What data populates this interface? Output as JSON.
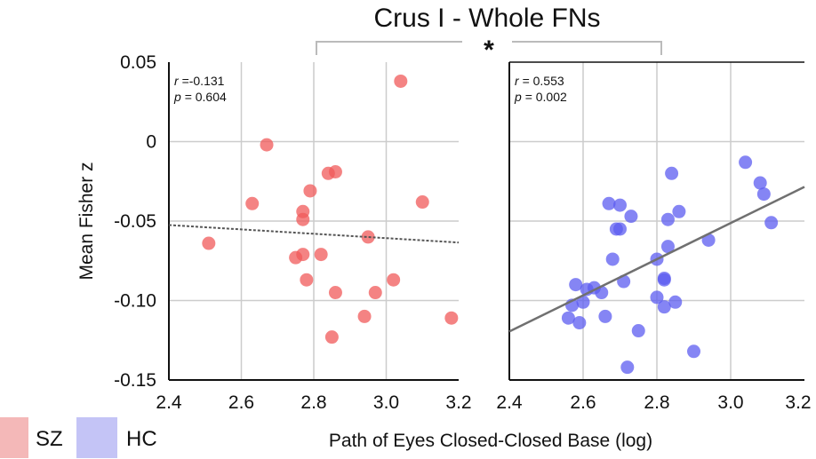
{
  "chart_data": {
    "type": "scatter",
    "title": "Crus I - Whole FNs",
    "significance_marker": "*",
    "xlabel": "Path of Eyes Closed-Closed Base (log)",
    "ylabel": "Mean Fisher z",
    "xlim": [
      2.4,
      3.2
    ],
    "ylim": [
      -0.15,
      0.05
    ],
    "x_ticks": [
      "2.4",
      "2.6",
      "2.8",
      "3.0",
      "3.2"
    ],
    "y_ticks": [
      "0.05",
      "0",
      "-0.05",
      "-0.10",
      "-0.15"
    ],
    "grid": true,
    "legend_position": "bottom-left",
    "legend": [
      {
        "label": "SZ",
        "color": "#f4b8b8"
      },
      {
        "label": "HC",
        "color": "#c4c4f6"
      }
    ],
    "panels": [
      {
        "name": "SZ",
        "color": "#f05a5a",
        "r_label": "r",
        "r_value": "=-0.131",
        "p_label": "p",
        "p_value": "=  0.604",
        "trend": {
          "style": "dotted",
          "color": "#555555",
          "x": [
            2.4,
            3.2
          ],
          "y": [
            -0.0525,
            -0.0635
          ]
        },
        "points": [
          [
            2.51,
            -0.064
          ],
          [
            2.63,
            -0.039
          ],
          [
            2.67,
            -0.002
          ],
          [
            2.75,
            -0.073
          ],
          [
            2.77,
            -0.044
          ],
          [
            2.77,
            -0.049
          ],
          [
            2.77,
            -0.071
          ],
          [
            2.78,
            -0.087
          ],
          [
            2.79,
            -0.031
          ],
          [
            2.82,
            -0.071
          ],
          [
            2.84,
            -0.02
          ],
          [
            2.85,
            -0.123
          ],
          [
            2.86,
            -0.095
          ],
          [
            2.86,
            -0.019
          ],
          [
            2.94,
            -0.11
          ],
          [
            2.95,
            -0.06
          ],
          [
            2.97,
            -0.095
          ],
          [
            3.02,
            -0.087
          ],
          [
            3.04,
            0.038
          ],
          [
            3.1,
            -0.038
          ],
          [
            3.18,
            -0.111
          ]
        ]
      },
      {
        "name": "HC",
        "color": "#5c5cf0",
        "r_label": "r",
        "r_value": "=  0.553",
        "p_label": "p",
        "p_value": "=  0.002",
        "trend": {
          "style": "solid",
          "color": "#707070",
          "x": [
            2.4,
            3.2
          ],
          "y": [
            -0.1195,
            -0.0285
          ]
        },
        "points": [
          [
            2.56,
            -0.111
          ],
          [
            2.57,
            -0.103
          ],
          [
            2.58,
            -0.09
          ],
          [
            2.59,
            -0.114
          ],
          [
            2.6,
            -0.101
          ],
          [
            2.61,
            -0.093
          ],
          [
            2.63,
            -0.092
          ],
          [
            2.65,
            -0.095
          ],
          [
            2.66,
            -0.11
          ],
          [
            2.67,
            -0.039
          ],
          [
            2.68,
            -0.074
          ],
          [
            2.69,
            -0.055
          ],
          [
            2.7,
            -0.04
          ],
          [
            2.7,
            -0.055
          ],
          [
            2.71,
            -0.088
          ],
          [
            2.72,
            -0.142
          ],
          [
            2.73,
            -0.047
          ],
          [
            2.75,
            -0.119
          ],
          [
            2.8,
            -0.074
          ],
          [
            2.8,
            -0.098
          ],
          [
            2.82,
            -0.104
          ],
          [
            2.82,
            -0.086
          ],
          [
            2.83,
            -0.049
          ],
          [
            2.83,
            -0.066
          ],
          [
            2.84,
            -0.02
          ],
          [
            2.85,
            -0.101
          ],
          [
            2.86,
            -0.044
          ],
          [
            2.9,
            -0.132
          ],
          [
            2.94,
            -0.062
          ],
          [
            3.04,
            -0.013
          ],
          [
            3.08,
            -0.026
          ],
          [
            3.09,
            -0.033
          ],
          [
            3.11,
            -0.051
          ],
          [
            2.82,
            -0.087
          ]
        ]
      }
    ]
  }
}
